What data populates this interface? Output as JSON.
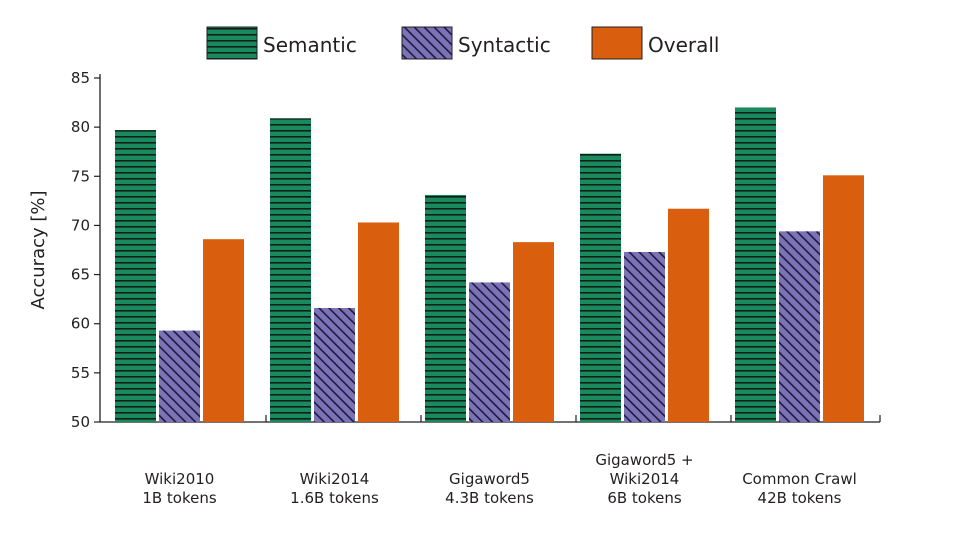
{
  "chart_data": {
    "type": "bar",
    "ylabel": "Accuracy [%]",
    "ylim": [
      50,
      85
    ],
    "yticks": [
      50,
      55,
      60,
      65,
      70,
      75,
      80,
      85
    ],
    "legend_position": "top",
    "grid": false,
    "categories": [
      [
        "Wiki2010",
        "1B tokens"
      ],
      [
        "Wiki2014",
        "1.6B tokens"
      ],
      [
        "Gigaword5",
        "4.3B tokens"
      ],
      [
        "Gigaword5 +",
        "Wiki2014",
        "6B tokens"
      ],
      [
        "Common Crawl",
        "42B tokens"
      ]
    ],
    "series": [
      {
        "name": "Semantic",
        "color": "#1a8a5e",
        "pattern": "horizontal-lines",
        "values": [
          79.7,
          80.9,
          73.1,
          77.3,
          82.0
        ]
      },
      {
        "name": "Syntactic",
        "color": "#7b72b8",
        "pattern": "diagonal-hatch",
        "values": [
          59.3,
          61.6,
          64.2,
          67.3,
          69.4
        ]
      },
      {
        "name": "Overall",
        "color": "#d95f0e",
        "pattern": "solid",
        "values": [
          68.6,
          70.3,
          68.3,
          71.7,
          75.1
        ]
      }
    ]
  }
}
